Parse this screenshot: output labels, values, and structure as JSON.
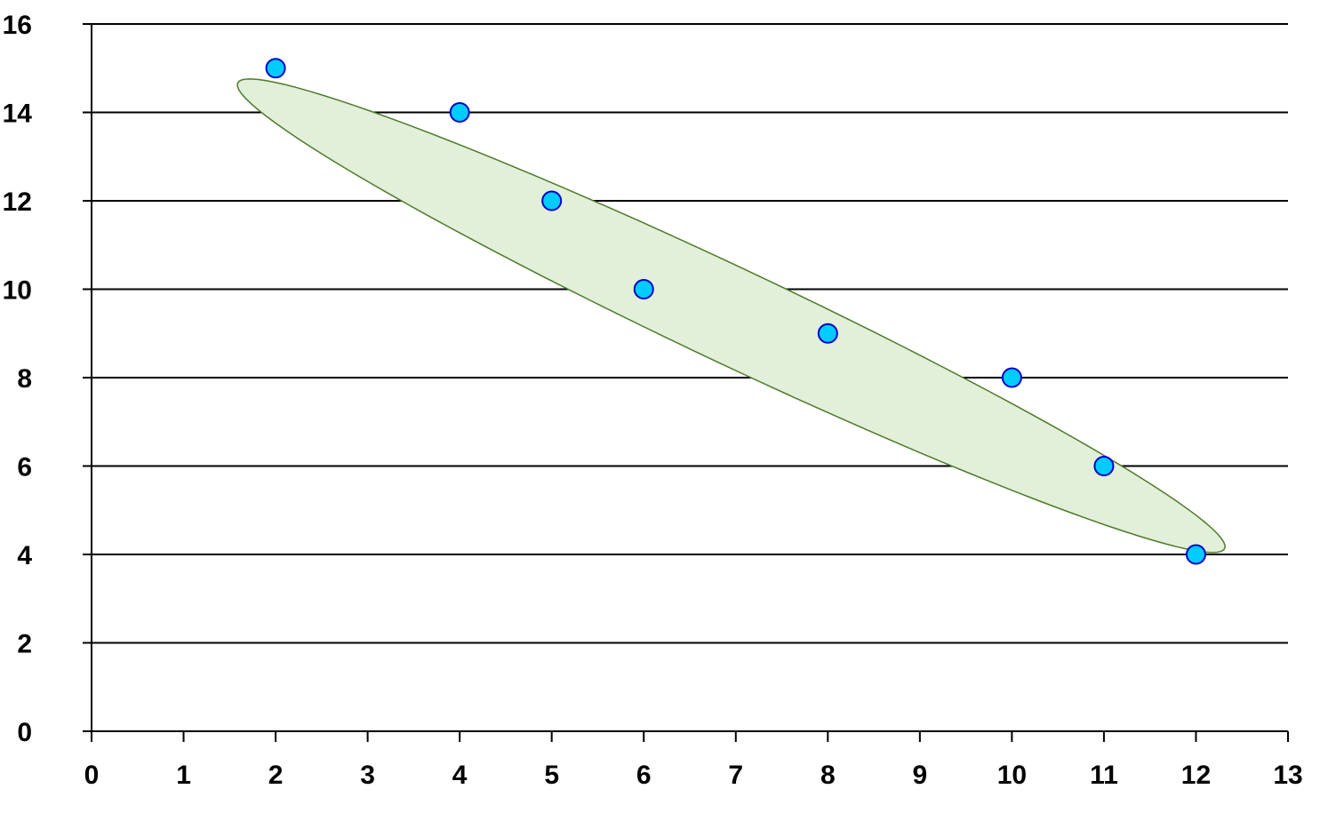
{
  "chart_data": {
    "type": "scatter",
    "title": "",
    "xlabel": "",
    "ylabel": "",
    "xlim": [
      0,
      13
    ],
    "ylim": [
      0,
      16
    ],
    "x_ticks": [
      0,
      1,
      2,
      3,
      4,
      5,
      6,
      7,
      8,
      9,
      10,
      11,
      12,
      13
    ],
    "y_ticks": [
      0,
      2,
      4,
      6,
      8,
      10,
      12,
      14,
      16
    ],
    "grid": "horizontal",
    "legend": "none",
    "series": [
      {
        "points": [
          {
            "x": 2,
            "y": 15
          },
          {
            "x": 4,
            "y": 14
          },
          {
            "x": 5,
            "y": 12
          },
          {
            "x": 6,
            "y": 10
          },
          {
            "x": 8,
            "y": 9
          },
          {
            "x": 10,
            "y": 8
          },
          {
            "x": 11,
            "y": 6
          },
          {
            "x": 12,
            "y": 4
          }
        ],
        "marker_color": "#00ccff",
        "marker_edge_color": "#0000cc"
      }
    ],
    "annotations": [
      {
        "type": "ellipse",
        "center": {
          "x": 6.95,
          "y": 9.4
        },
        "semi_major": {
          "dx": 5.35,
          "dy": -5.3
        },
        "semi_minor": {
          "dx": -0.42,
          "dy": -0.78
        },
        "fill_color": "#e2efd9",
        "stroke_color": "#4e7a2a"
      }
    ],
    "gridline_color": "#000000",
    "axis_color": "#000000"
  }
}
